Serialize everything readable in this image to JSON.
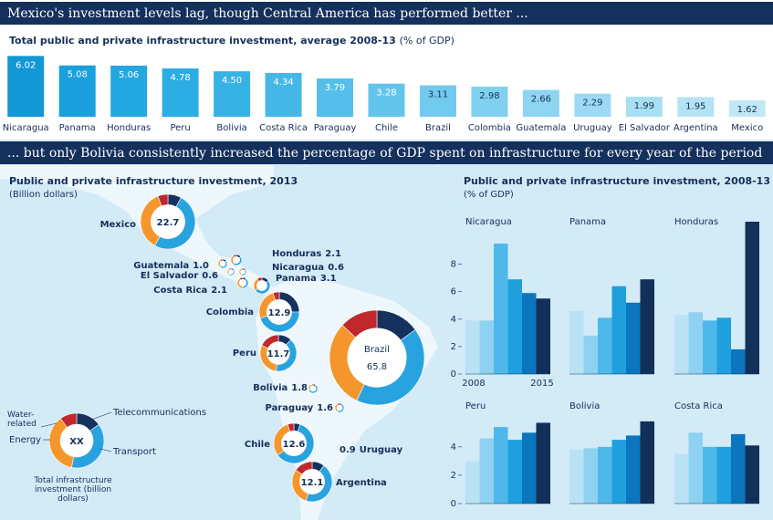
{
  "headline": "Mexico's investment levels lag, though Central America has performed better ...",
  "subheadline": "... but only Bolivia consistently increased the percentage of GDP spent on infrastructure for every year of the period",
  "chart_data": [
    {
      "type": "bar",
      "title": "Total public and private infrastructure investment, average 2008-13",
      "unit": "(% of GDP)",
      "categories": [
        "Nicaragua",
        "Panama",
        "Honduras",
        "Peru",
        "Bolivia",
        "Costa Rica",
        "Paraguay",
        "Chile",
        "Brazil",
        "Colombia",
        "Guatemala",
        "Uruguay",
        "El Salvador",
        "Argentina",
        "Mexico"
      ],
      "values": [
        6.02,
        5.08,
        5.06,
        4.78,
        4.5,
        4.34,
        3.79,
        3.28,
        3.11,
        2.98,
        2.66,
        2.29,
        1.99,
        1.95,
        1.62
      ],
      "value_labels": [
        "6.02",
        "5.08",
        "5.06",
        "4.78",
        "4.50",
        "4.34",
        "3.79",
        "3.28",
        "3.11",
        "2.98",
        "2.66",
        "2.29",
        "1.99",
        "1.95",
        "1.62"
      ],
      "colors": [
        "#1497d6",
        "#1aa0dc",
        "#22a7e0",
        "#2cade3",
        "#37b2e5",
        "#45b8e8",
        "#55bfea",
        "#63c5ec",
        "#72cbee",
        "#80d0f0",
        "#8ed5f1",
        "#9cdaf3",
        "#a9dff4",
        "#b5e3f5",
        "#c1e8f7"
      ],
      "ylim": [
        0,
        6.5
      ]
    },
    {
      "type": "donut",
      "title": "Public and private infrastructure investment, 2013",
      "subtitle": "(Billion dollars)",
      "segments": [
        {
          "name": "Telecommunications",
          "color": "#15325e"
        },
        {
          "name": "Transport",
          "color": "#29a3e0"
        },
        {
          "name": "Energy",
          "color": "#f4962c"
        },
        {
          "name": "Water-related",
          "color": "#c0282d"
        }
      ],
      "legend_center": "XX",
      "legend_note": "Total infrastructure investment (billion dollars)",
      "countries": [
        {
          "name": "Mexico",
          "value": 22.7,
          "shares": [
            0.08,
            0.5,
            0.36,
            0.06
          ]
        },
        {
          "name": "Guatemala",
          "value": 1,
          "value_label": "1.0",
          "shares": [
            0.15,
            0.45,
            0.3,
            0.1
          ]
        },
        {
          "name": "El Salvador",
          "value": 0.6,
          "shares": [
            0.15,
            0.45,
            0.3,
            0.1
          ]
        },
        {
          "name": "Honduras",
          "value": 2.1,
          "shares": [
            0.15,
            0.45,
            0.3,
            0.1
          ]
        },
        {
          "name": "Nicaragua",
          "value": 0.6,
          "shares": [
            0.15,
            0.45,
            0.3,
            0.1
          ]
        },
        {
          "name": "Costa Rica",
          "value": 2.1,
          "shares": [
            0.1,
            0.4,
            0.4,
            0.1
          ]
        },
        {
          "name": "Panama",
          "value": 3.1,
          "shares": [
            0.15,
            0.5,
            0.25,
            0.1
          ]
        },
        {
          "name": "Colombia",
          "value": 12.9,
          "shares": [
            0.25,
            0.45,
            0.25,
            0.05
          ]
        },
        {
          "name": "Peru",
          "value": 11.7,
          "shares": [
            0.12,
            0.4,
            0.3,
            0.18
          ]
        },
        {
          "name": "Brazil",
          "value": 65.8,
          "shares": [
            0.15,
            0.42,
            0.3,
            0.13
          ]
        },
        {
          "name": "Bolivia",
          "value": 1.8,
          "shares": [
            0.1,
            0.6,
            0.25,
            0.05
          ]
        },
        {
          "name": "Paraguay",
          "value": 1.6,
          "shares": [
            0.1,
            0.5,
            0.3,
            0.1
          ]
        },
        {
          "name": "Chile",
          "value": 12.6,
          "shares": [
            0.05,
            0.6,
            0.3,
            0.05
          ]
        },
        {
          "name": "Argentina",
          "value": 12.1,
          "shares": [
            0.1,
            0.45,
            0.3,
            0.15
          ]
        },
        {
          "name": "Uruguay",
          "value": 0.9
        }
      ]
    },
    {
      "type": "small-multiples",
      "title": "Public and private infrastructure investment, 2008-13",
      "subtitle": "(% of GDP)",
      "colors": [
        "#b9e2f5",
        "#8fd1f0",
        "#4fb8ea",
        "#1f9fde",
        "#0b75bd",
        "#13305a"
      ],
      "xtick_labels": [
        "2008",
        "2015"
      ],
      "rows": [
        {
          "ylim": [
            0,
            11.5
          ],
          "yticks": [
            0,
            2,
            4,
            6,
            8
          ],
          "panels": [
            {
              "title": "Nicaragua",
              "values": [
                3.9,
                3.9,
                9.5,
                6.9,
                5.9,
                5.5
              ]
            },
            {
              "title": "Panama",
              "values": [
                4.6,
                2.8,
                4.1,
                6.4,
                5.2,
                6.9
              ]
            },
            {
              "title": "Honduras",
              "values": [
                4.3,
                4.5,
                3.9,
                4.1,
                1.8,
                11.1
              ]
            }
          ]
        },
        {
          "ylim": [
            0,
            6.5
          ],
          "yticks": [
            0,
            2,
            4
          ],
          "panels": [
            {
              "title": "Peru",
              "values": [
                3.0,
                4.6,
                5.4,
                4.5,
                5.0,
                5.7
              ]
            },
            {
              "title": "Bolivia",
              "values": [
                3.8,
                3.9,
                4.0,
                4.5,
                4.8,
                5.8
              ]
            },
            {
              "title": "Costa Rica",
              "values": [
                3.5,
                5.0,
                4.0,
                4.0,
                4.9,
                4.1
              ]
            }
          ]
        }
      ]
    }
  ]
}
